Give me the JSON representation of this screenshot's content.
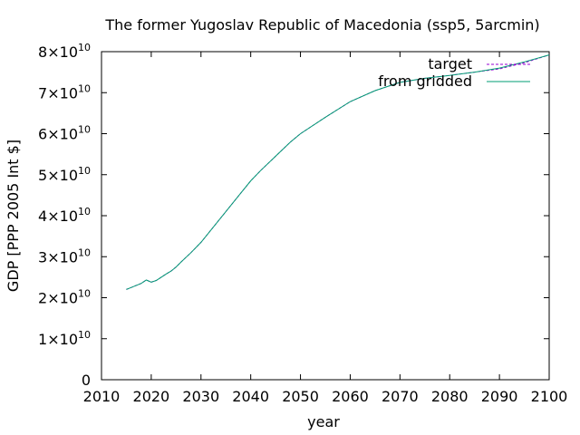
{
  "chart_data": {
    "type": "line",
    "title": "The former Yugoslav Republic of Macedonia (ssp5, 5arcmin)",
    "xlabel": "year",
    "ylabel": "GDP [PPP 2005 Int $]",
    "xlim": [
      2010,
      2100
    ],
    "ylim": [
      0,
      80000000000
    ],
    "x_ticks": [
      2010,
      2020,
      2030,
      2040,
      2050,
      2060,
      2070,
      2080,
      2090,
      2100
    ],
    "x_tick_labels": [
      "2010",
      "2020",
      "2030",
      "2040",
      "2050",
      "2060",
      "2070",
      "2080",
      "2090",
      "2100"
    ],
    "y_ticks": [
      0,
      10000000000,
      20000000000,
      30000000000,
      40000000000,
      50000000000,
      60000000000,
      70000000000,
      80000000000
    ],
    "y_tick_labels": [
      {
        "mantissa": "0",
        "exp": ""
      },
      {
        "mantissa": "1×10",
        "exp": "10"
      },
      {
        "mantissa": "2×10",
        "exp": "10"
      },
      {
        "mantissa": "3×10",
        "exp": "10"
      },
      {
        "mantissa": "4×10",
        "exp": "10"
      },
      {
        "mantissa": "5×10",
        "exp": "10"
      },
      {
        "mantissa": "6×10",
        "exp": "10"
      },
      {
        "mantissa": "7×10",
        "exp": "10"
      },
      {
        "mantissa": "8×10",
        "exp": "10"
      }
    ],
    "grid": false,
    "legend_position": "top-right",
    "x": [
      2015,
      2016,
      2017,
      2018,
      2019,
      2020,
      2021,
      2022,
      2023,
      2024,
      2025,
      2026,
      2028,
      2030,
      2032,
      2034,
      2036,
      2038,
      2040,
      2042,
      2045,
      2048,
      2050,
      2055,
      2060,
      2065,
      2070,
      2075,
      2080,
      2085,
      2090,
      2095,
      2100
    ],
    "series": [
      {
        "name": "target",
        "color": "#9400d3",
        "values": [
          22000000000.0,
          22500000000.0,
          23000000000.0,
          23500000000.0,
          24300000000.0,
          23800000000.0,
          24200000000.0,
          25000000000.0,
          25800000000.0,
          26500000000.0,
          27500000000.0,
          28700000000.0,
          31000000000.0,
          33500000000.0,
          36500000000.0,
          39500000000.0,
          42500000000.0,
          45500000000.0,
          48500000000.0,
          51000000000.0,
          54500000000.0,
          58000000000.0,
          60000000000.0,
          64000000000.0,
          67800000000.0,
          70500000000.0,
          72500000000.0,
          73500000000.0,
          74200000000.0,
          75000000000.0,
          75800000000.0,
          77300000000.0,
          79200000000.0
        ]
      },
      {
        "name": "from gridded",
        "color": "#009e73",
        "values": [
          22000000000.0,
          22500000000.0,
          23000000000.0,
          23500000000.0,
          24300000000.0,
          23800000000.0,
          24200000000.0,
          25000000000.0,
          25800000000.0,
          26500000000.0,
          27500000000.0,
          28700000000.0,
          31000000000.0,
          33500000000.0,
          36500000000.0,
          39500000000.0,
          42500000000.0,
          45500000000.0,
          48500000000.0,
          51000000000.0,
          54500000000.0,
          58000000000.0,
          60000000000.0,
          64000000000.0,
          67800000000.0,
          70500000000.0,
          72500000000.0,
          73500000000.0,
          74200000000.0,
          75000000000.0,
          76000000000.0,
          77500000000.0,
          79200000000.0
        ]
      }
    ]
  }
}
